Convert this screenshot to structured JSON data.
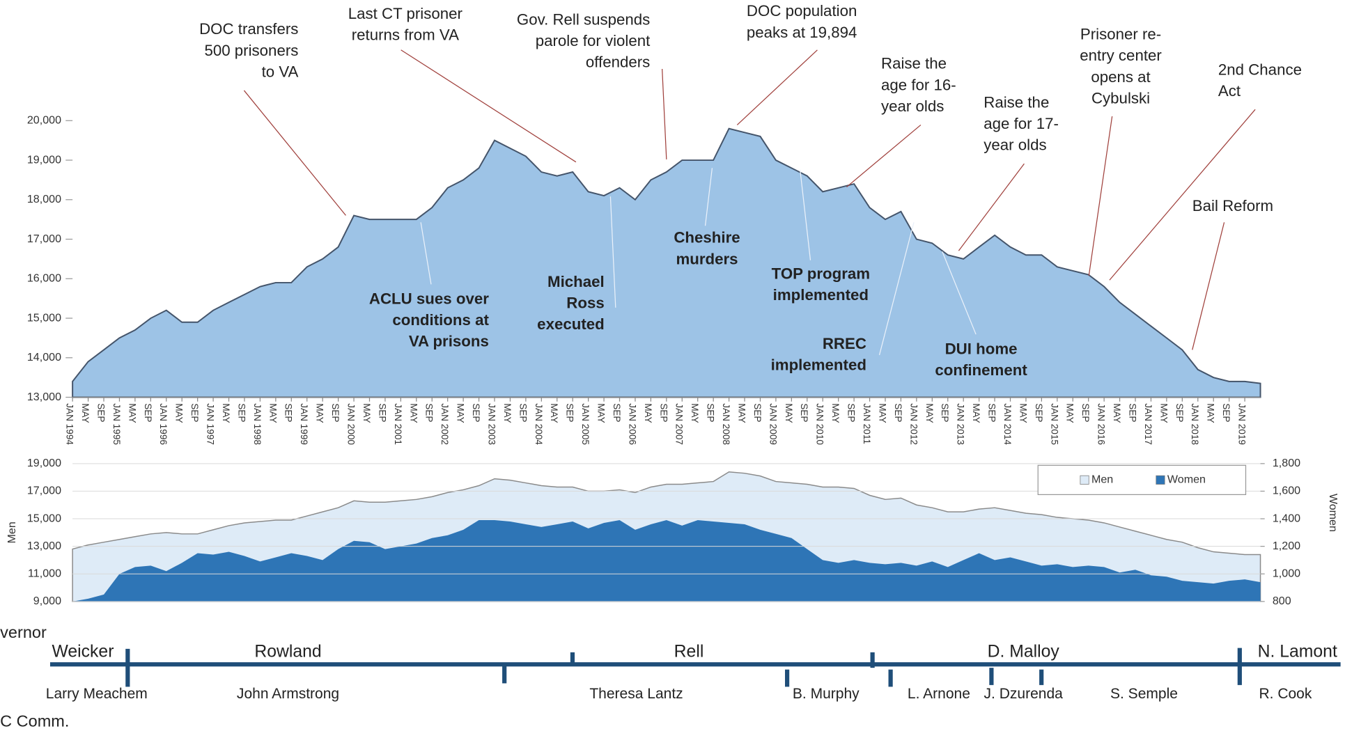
{
  "chart_data": [
    {
      "type": "area",
      "categories": [
        "JAN 1994",
        "MAY",
        "SEP",
        "JAN 1995",
        "MAY",
        "SEP",
        "JAN 1996",
        "MAY",
        "SEP",
        "JAN 1997",
        "MAY",
        "SEP",
        "JAN 1998",
        "MAY",
        "SEP",
        "JAN 1999",
        "MAY",
        "SEP",
        "JAN 2000",
        "MAY",
        "SEP",
        "JAN 2001",
        "MAY",
        "SEP",
        "JAN 2002",
        "MAY",
        "SEP",
        "JAN 2003",
        "MAY",
        "SEP",
        "JAN 2004",
        "MAY",
        "SEP",
        "JAN 2005",
        "MAY",
        "SEP",
        "JAN 2006",
        "MAY",
        "SEP",
        "JAN 2007",
        "MAY",
        "SEP",
        "JAN 2008",
        "MAY",
        "SEP",
        "JAN 2009",
        "MAY",
        "SEP",
        "JAN 2010",
        "MAY",
        "SEP",
        "JAN 2011",
        "MAY",
        "SEP",
        "JAN 2012",
        "MAY",
        "SEP",
        "JAN 2013",
        "MAY",
        "SEP",
        "JAN 2014",
        "MAY",
        "SEP",
        "JAN 2015",
        "MAY",
        "SEP",
        "JAN 2016",
        "MAY",
        "SEP",
        "JAN 2017",
        "MAY",
        "SEP",
        "JAN 2018",
        "MAY",
        "SEP",
        "JAN 2019",
        null
      ],
      "values": [
        13400,
        13900,
        14200,
        14500,
        14700,
        15000,
        15200,
        14900,
        14900,
        15200,
        15400,
        15600,
        15800,
        15900,
        15900,
        16300,
        16500,
        16800,
        17600,
        17500,
        17500,
        17500,
        17500,
        17800,
        18300,
        18500,
        18800,
        19500,
        19300,
        19100,
        18700,
        18600,
        18700,
        18200,
        18100,
        18300,
        18000,
        18500,
        18700,
        19000,
        19000,
        19000,
        19800,
        19700,
        19600,
        19000,
        18800,
        18600,
        18200,
        18300,
        18400,
        17800,
        17500,
        17700,
        17000,
        16900,
        16600,
        16500,
        16800,
        17100,
        16800,
        16600,
        16600,
        16300,
        16200,
        16100,
        15800,
        15400,
        15100,
        14800,
        14500,
        14200,
        13700,
        13500,
        13400,
        13400,
        13350
      ],
      "color": "#9dc3e6",
      "line_color": "#44546a",
      "ylim": [
        13000,
        20000
      ],
      "yticks": [
        {
          "value": 13000,
          "label": "13,000"
        },
        {
          "value": 14000,
          "label": "14,000"
        },
        {
          "value": 15000,
          "label": "15,000"
        },
        {
          "value": 16000,
          "label": "16,000"
        },
        {
          "value": 17000,
          "label": "17,000"
        },
        {
          "value": 18000,
          "label": "18,000"
        },
        {
          "value": 19000,
          "label": "19,000"
        },
        {
          "value": 20000,
          "label": "20,000"
        }
      ],
      "annotations": [
        {
          "lines": [
            "DOC transfers",
            "500 prisoners",
            "to VA"
          ],
          "bold": false
        },
        {
          "lines": [
            "Last CT prisoner",
            "returns from VA"
          ],
          "bold": false
        },
        {
          "lines": [
            "Gov. Rell suspends",
            "parole for violent",
            "offenders"
          ],
          "bold": false
        },
        {
          "lines": [
            "DOC population",
            "peaks at 19,894"
          ],
          "bold": false
        },
        {
          "lines": [
            "Raise the",
            "age for 16-",
            "year olds"
          ],
          "bold": false
        },
        {
          "lines": [
            "Raise the",
            "age for 17-",
            "year olds"
          ],
          "bold": false
        },
        {
          "lines": [
            "Prisoner re-",
            "entry center",
            "opens at",
            "Cybulski"
          ],
          "bold": false
        },
        {
          "lines": [
            "2nd Chance",
            "Act"
          ],
          "bold": false
        },
        {
          "lines": [
            "Bail Reform"
          ],
          "bold": false
        },
        {
          "lines": [
            "ACLU sues over",
            "conditions  at",
            "VA prisons"
          ],
          "bold": true
        },
        {
          "lines": [
            "Michael",
            "Ross",
            "executed"
          ],
          "bold": true
        },
        {
          "lines": [
            "Cheshire",
            "murders"
          ],
          "bold": true
        },
        {
          "lines": [
            "TOP program",
            "implemented"
          ],
          "bold": true
        },
        {
          "lines": [
            "RREC",
            "implemented"
          ],
          "bold": true
        },
        {
          "lines": [
            "DUI home",
            "confinement"
          ],
          "bold": true
        }
      ]
    },
    {
      "type": "area",
      "y_label": "Men",
      "y2_label": "Women",
      "legend": "top-right",
      "series": [
        {
          "name": "Men",
          "color": "#deebf7",
          "values": [
            12800,
            13100,
            13300,
            13500,
            13700,
            13900,
            14000,
            13900,
            13900,
            14200,
            14500,
            14700,
            14800,
            14900,
            14900,
            15200,
            15500,
            15800,
            16300,
            16200,
            16200,
            16300,
            16400,
            16600,
            16900,
            17100,
            17400,
            17900,
            17800,
            17600,
            17400,
            17300,
            17300,
            17000,
            17000,
            17100,
            16900,
            17300,
            17500,
            17500,
            17600,
            17700,
            18400,
            18300,
            18100,
            17700,
            17600,
            17500,
            17300,
            17300,
            17200,
            16700,
            16400,
            16500,
            16000,
            15800,
            15500,
            15500,
            15700,
            15800,
            15600,
            15400,
            15300,
            15100,
            15000,
            14900,
            14700,
            14400,
            14100,
            13800,
            13500,
            13300,
            12900,
            12600,
            12500,
            12400,
            12400
          ]
        },
        {
          "name": "Women",
          "color": "#2e75b6",
          "axis": "y2",
          "values": [
            800,
            820,
            850,
            1000,
            1050,
            1060,
            1020,
            1080,
            1150,
            1140,
            1160,
            1130,
            1090,
            1120,
            1150,
            1130,
            1100,
            1180,
            1240,
            1230,
            1180,
            1200,
            1220,
            1260,
            1280,
            1320,
            1390,
            1390,
            1380,
            1360,
            1340,
            1360,
            1380,
            1330,
            1370,
            1390,
            1320,
            1360,
            1390,
            1350,
            1390,
            1380,
            1370,
            1360,
            1320,
            1290,
            1260,
            1180,
            1100,
            1080,
            1100,
            1080,
            1070,
            1080,
            1060,
            1090,
            1050,
            1100,
            1150,
            1100,
            1120,
            1090,
            1060,
            1070,
            1050,
            1060,
            1050,
            1010,
            1030,
            990,
            980,
            950,
            940,
            930,
            950,
            960,
            940
          ]
        }
      ],
      "ylim": [
        9000,
        19000
      ],
      "yticks": [
        {
          "value": 9000,
          "label": "9,000"
        },
        {
          "value": 11000,
          "label": "11,000"
        },
        {
          "value": 13000,
          "label": "13,000"
        },
        {
          "value": 15000,
          "label": "15,000"
        },
        {
          "value": 17000,
          "label": "17,000"
        },
        {
          "value": 19000,
          "label": "19,000"
        }
      ],
      "y2lim": [
        800,
        1800
      ],
      "y2ticks": [
        800,
        {
          "value": 1000,
          "label": "1,000"
        },
        {
          "value": 1200,
          "label": "1,200"
        },
        {
          "value": 1400,
          "label": "1,400"
        },
        {
          "value": 1600,
          "label": "1,600"
        },
        {
          "value": 1800,
          "label": "1,800"
        }
      ]
    }
  ],
  "timeline": {
    "governor_label": "vernor",
    "governors": [
      "Weicker",
      "Rowland",
      "Rell",
      "D. Malloy",
      "N. Lamont"
    ],
    "commissioner_label": "C Comm.",
    "commissioners": [
      "Larry Meachem",
      "John Armstrong",
      "Theresa Lantz",
      "B. Murphy",
      "L. Arnone",
      "J. Dzurenda",
      "S. Semple",
      "R. Cook"
    ]
  }
}
